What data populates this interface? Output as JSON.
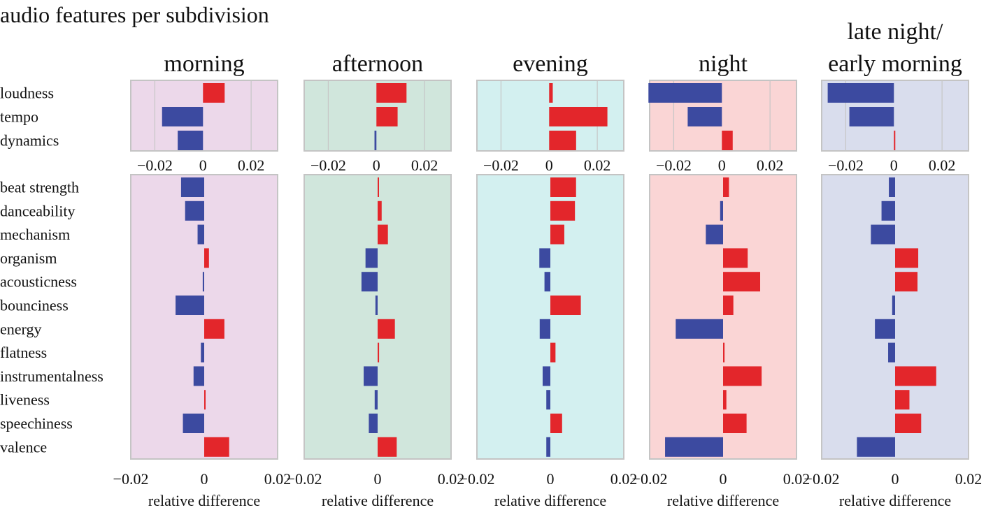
{
  "title": "audio features per subdivision",
  "colors": {
    "positive": "#e3262b",
    "negative": "#3c4aa0",
    "grid": "#c6c6c6",
    "frame": "#c4c4c4"
  },
  "chart_data": {
    "type": "bar",
    "orientation": "horizontal",
    "title": "audio features per subdivision",
    "xlabel": "relative difference",
    "groups": [
      {
        "features": [
          "loudness",
          "tempo",
          "dynamics"
        ],
        "xlim": [
          -0.03,
          0.031
        ],
        "ticks": [
          "−0.02",
          "0",
          "0.02"
        ]
      },
      {
        "features": [
          "beat strength",
          "danceability",
          "mechanism",
          "organism",
          "acousticness",
          "bounciness",
          "energy",
          "flatness",
          "instrumentalness",
          "liveness",
          "speechiness",
          "valence"
        ],
        "xlim": [
          -0.02,
          0.02
        ],
        "ticks": [
          "−0.02",
          "0",
          "0.02"
        ]
      }
    ],
    "subdivisions": [
      {
        "name_lines": [
          "morning"
        ],
        "background": "#ecd8ea",
        "group_values": [
          [
            0.009,
            -0.017,
            -0.0105
          ],
          [
            -0.0063,
            -0.0052,
            -0.0018,
            0.0013,
            -0.0004,
            -0.0078,
            0.0055,
            -0.0009,
            -0.0029,
            0.0002,
            -0.0058,
            0.0068
          ]
        ]
      },
      {
        "name_lines": [
          "afternoon"
        ],
        "background": "#d0e6dc",
        "group_values": [
          [
            0.0125,
            0.0088,
            -0.0008
          ],
          [
            0.0003,
            0.0011,
            0.0028,
            -0.0033,
            -0.0044,
            -0.0006,
            0.0047,
            0.0004,
            -0.0038,
            -0.0008,
            -0.0024,
            0.0052
          ]
        ]
      },
      {
        "name_lines": [
          "evening"
        ],
        "background": "#d3f0f0",
        "group_values": [
          [
            0.0015,
            0.0242,
            0.0112
          ],
          [
            0.007,
            0.0067,
            0.0038,
            -0.003,
            -0.0016,
            0.0083,
            -0.0029,
            0.0014,
            -0.0021,
            -0.0011,
            0.0032,
            -0.0011
          ]
        ]
      },
      {
        "name_lines": [
          "night"
        ],
        "background": "#fad5d5",
        "group_values": [
          [
            -0.0305,
            -0.0142,
            0.0045
          ],
          [
            0.0016,
            -0.0008,
            -0.0047,
            0.0067,
            0.0101,
            0.0028,
            -0.0129,
            0.0004,
            0.0105,
            0.0009,
            0.0064,
            -0.0158
          ]
        ]
      },
      {
        "name_lines": [
          "late night/",
          "early morning"
        ],
        "background": "#d9dded",
        "group_values": [
          [
            -0.0275,
            -0.0185,
            0.0003
          ],
          [
            -0.0017,
            -0.0037,
            -0.0066,
            0.0063,
            0.0061,
            -0.0008,
            -0.0055,
            -0.0019,
            0.0112,
            0.0039,
            0.0071,
            -0.0104
          ]
        ]
      }
    ]
  }
}
